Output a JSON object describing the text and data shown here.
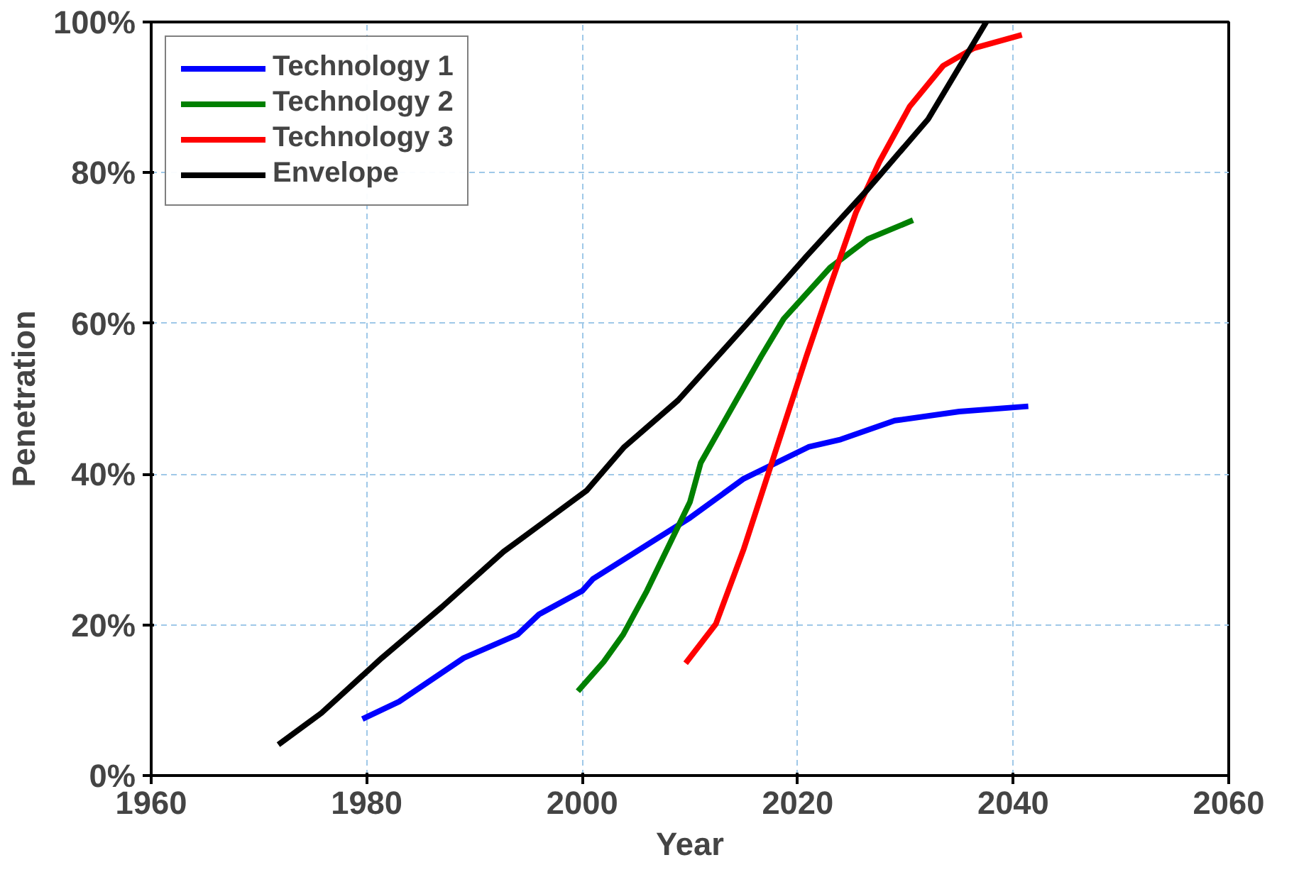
{
  "chart_data": {
    "type": "line",
    "xlabel": "Year",
    "ylabel": "Penetration",
    "xlim": [
      1960,
      2060
    ],
    "xticks": [
      1960,
      1980,
      2000,
      2020,
      2040,
      2060
    ],
    "ylim": [
      0,
      1
    ],
    "yticks": [
      {
        "value": 0,
        "label": "0%"
      },
      {
        "value": 0.2,
        "label": "20%"
      },
      {
        "value": 0.4,
        "label": "40%"
      },
      {
        "value": 0.6,
        "label": "60%"
      },
      {
        "value": 0.8,
        "label": "80%"
      },
      {
        "value": 1,
        "label": "100%"
      }
    ],
    "grid": true,
    "legend": "top left",
    "marker": "none",
    "line_style": "solid",
    "series": [
      {
        "name": "Technology 1",
        "color": "#0000ff",
        "x": [
          1979.6,
          1983,
          1989,
          1994,
          1996,
          2000,
          2001,
          2005,
          2010,
          2015,
          2021,
          2024,
          2029,
          2035,
          2041.4
        ],
        "values": [
          0.075,
          0.098,
          0.156,
          0.187,
          0.214,
          0.245,
          0.261,
          0.297,
          0.342,
          0.394,
          0.436,
          0.446,
          0.471,
          0.483,
          0.49
        ]
      },
      {
        "name": "Technology 2",
        "color": "#008000",
        "x": [
          1999.6,
          2002,
          2003.8,
          2006,
          2010,
          2011,
          2016.6,
          2018.7,
          2023,
          2026.5,
          2030.7
        ],
        "values": [
          0.112,
          0.151,
          0.187,
          0.245,
          0.363,
          0.415,
          0.556,
          0.606,
          0.674,
          0.712,
          0.737
        ]
      },
      {
        "name": "Technology 3",
        "color": "#ff0000",
        "x": [
          2009.6,
          2012.4,
          2015,
          2018.3,
          2020.8,
          2023,
          2025.4,
          2027.6,
          2030.4,
          2033.5,
          2036.3,
          2040.8
        ],
        "values": [
          0.149,
          0.201,
          0.301,
          0.446,
          0.556,
          0.649,
          0.747,
          0.815,
          0.888,
          0.942,
          0.965,
          0.983
        ]
      },
      {
        "name": "Envelope",
        "color": "#000000",
        "x": [
          1971.8,
          1975.8,
          1981.4,
          1987,
          1992.7,
          2000.4,
          2003.9,
          2008.9,
          2015.2,
          2020.8,
          2026.5,
          2032.1,
          2037.5
        ],
        "values": [
          0.041,
          0.083,
          0.156,
          0.224,
          0.297,
          0.378,
          0.436,
          0.498,
          0.598,
          0.689,
          0.778,
          0.871,
          1.0
        ]
      }
    ]
  }
}
